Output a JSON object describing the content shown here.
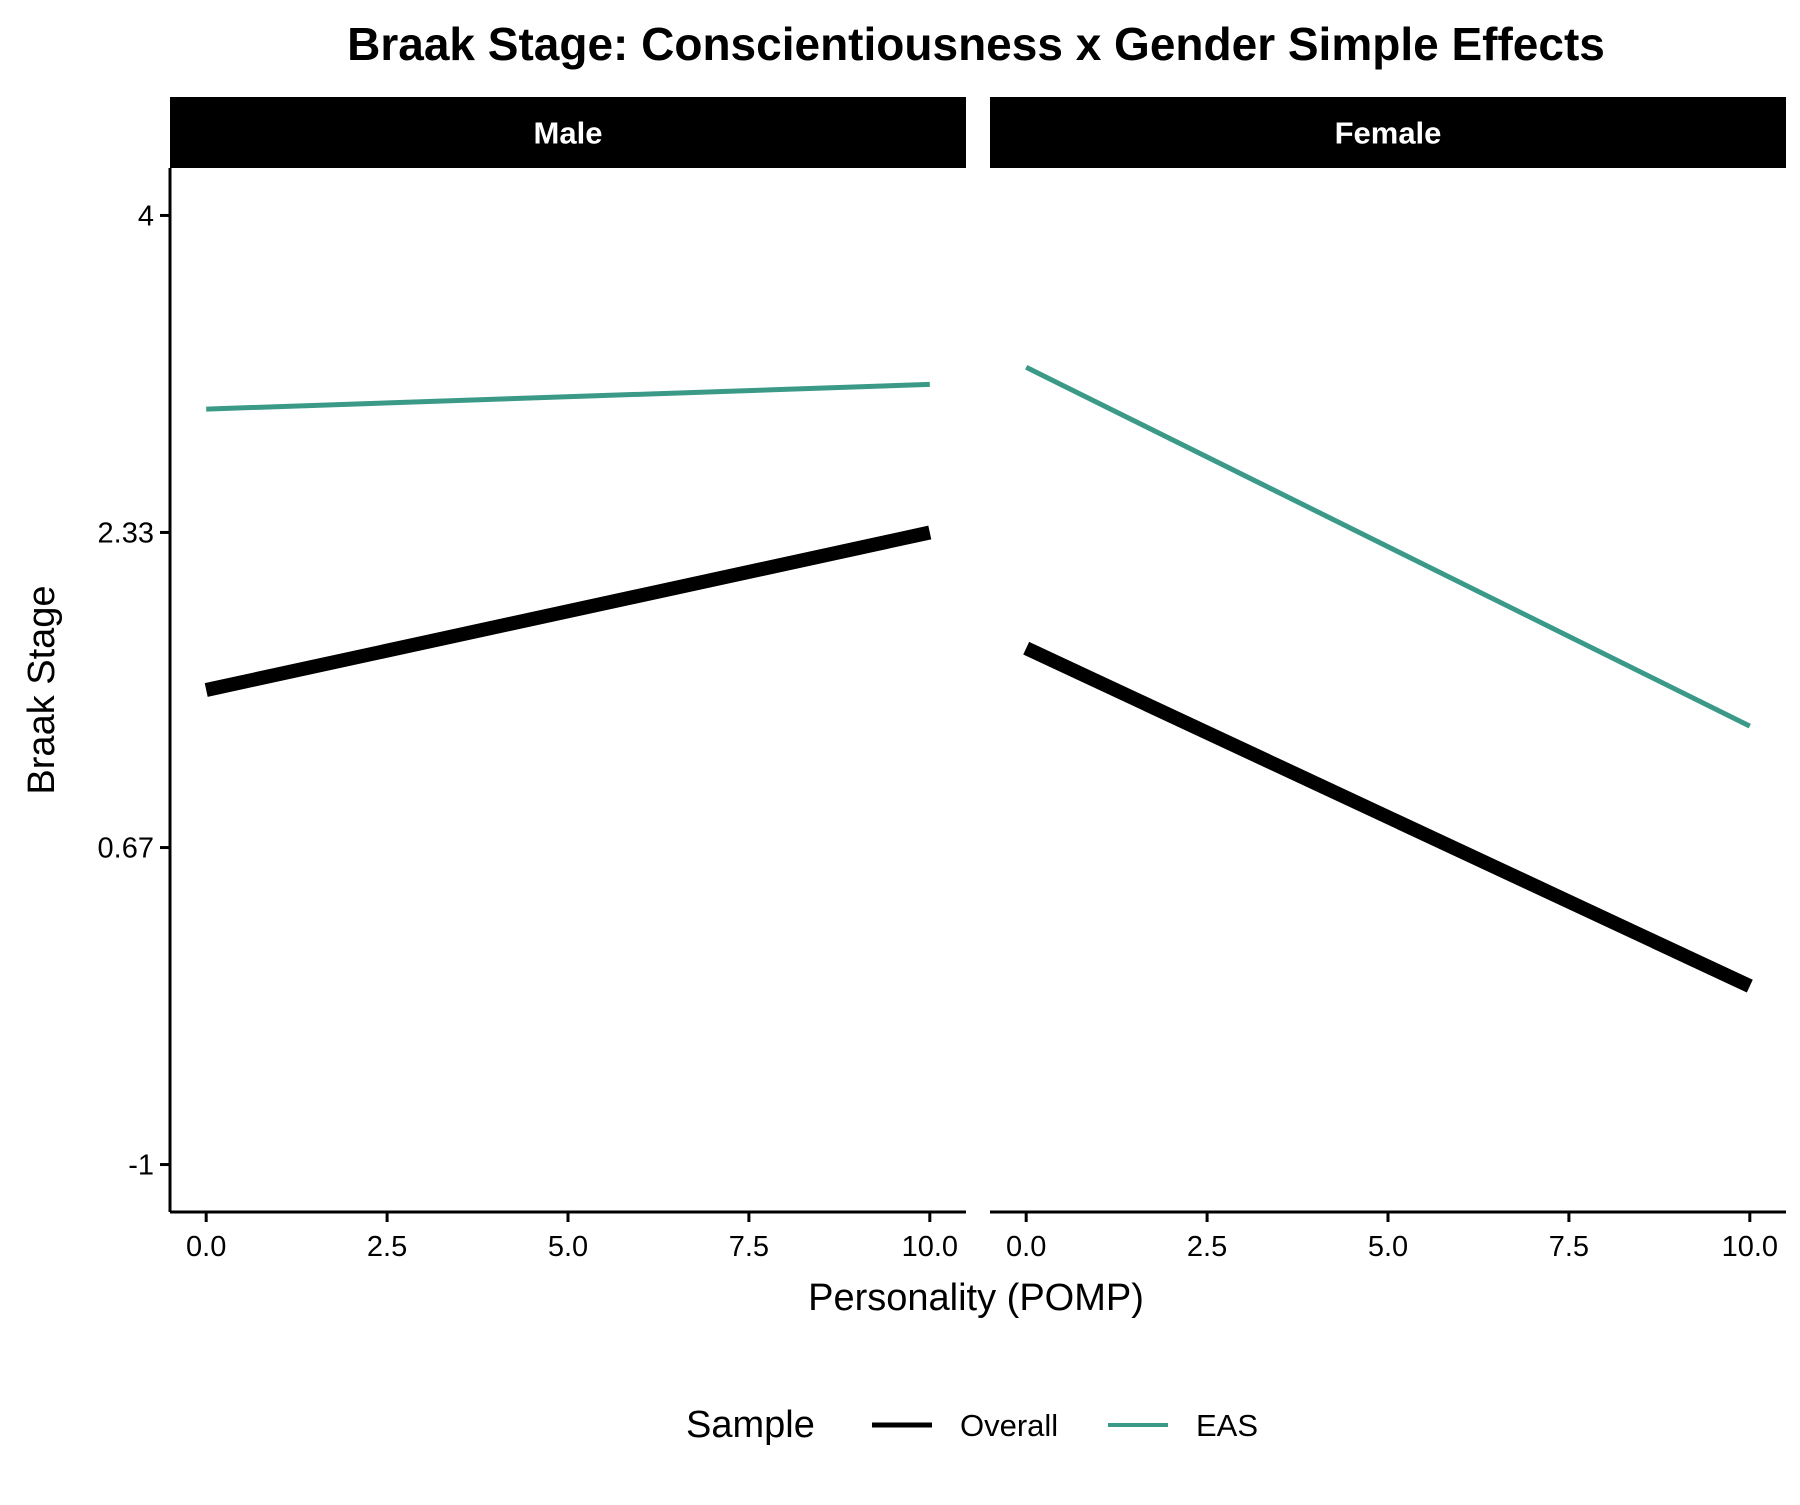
{
  "chart_data": {
    "type": "line",
    "title": "Braak Stage: Conscientiousness x Gender Simple Effects",
    "xlabel": "Personality (POMP)",
    "ylabel": "Braak Stage",
    "xlim": [
      -0.5,
      10.5
    ],
    "ylim": [
      -1.25,
      4.25
    ],
    "x_ticks": [
      0,
      2.5,
      5,
      7.5,
      10
    ],
    "x_tick_labels": [
      "0.0",
      "2.5",
      "5.0",
      "7.5",
      "10.0"
    ],
    "y_ticks": [
      -1,
      0.67,
      2.33,
      4
    ],
    "y_tick_labels": [
      "-1",
      "0.67",
      "2.33",
      "4"
    ],
    "grid": false,
    "legend": {
      "title": "Sample",
      "position": "bottom",
      "entries": [
        "Overall",
        "EAS"
      ]
    },
    "colors": {
      "Overall": "#000000",
      "EAS": "#3a9a87"
    },
    "panels": [
      {
        "label": "Male",
        "series": [
          {
            "name": "Overall",
            "x": [
              0,
              10
            ],
            "y": [
              1.5,
              2.33
            ]
          },
          {
            "name": "EAS",
            "x": [
              0,
              10
            ],
            "y": [
              2.98,
              3.11
            ]
          }
        ]
      },
      {
        "label": "Female",
        "series": [
          {
            "name": "Overall",
            "x": [
              0,
              10
            ],
            "y": [
              1.72,
              -0.06
            ]
          },
          {
            "name": "EAS",
            "x": [
              0,
              10
            ],
            "y": [
              3.2,
              1.31
            ]
          }
        ]
      }
    ]
  }
}
